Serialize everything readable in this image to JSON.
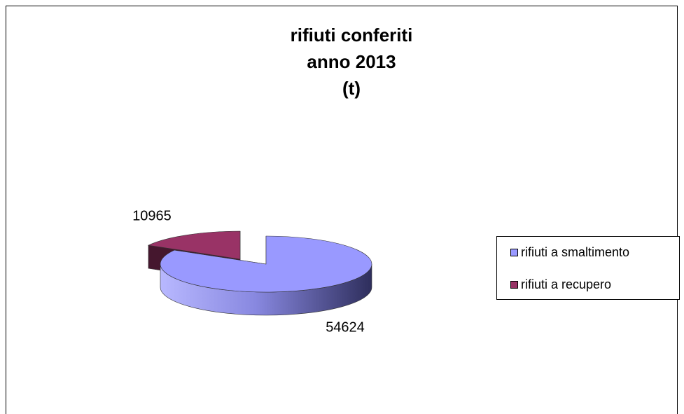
{
  "chart_data": {
    "type": "pie3d",
    "title": [
      "rifiuti conferiti",
      "anno 2013",
      "(t)"
    ],
    "categories": [
      "rifiuti a smaltimento",
      "rifiuti a recupero"
    ],
    "values": [
      54624,
      10965
    ],
    "colors": [
      "#9999ff",
      "#993366"
    ],
    "legend": "right"
  }
}
